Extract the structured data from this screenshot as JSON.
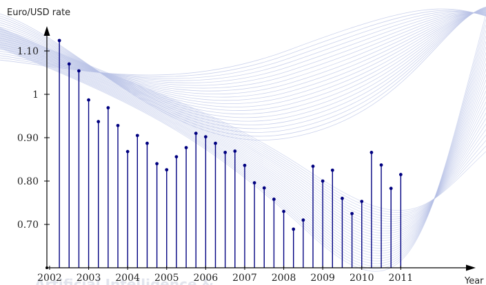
{
  "chart_data": {
    "type": "bar",
    "style": "stem",
    "ylabel": "Euro/USD rate",
    "xlabel": "Year",
    "yticks": [
      {
        "value": 0.7,
        "label": "0.70"
      },
      {
        "value": 0.8,
        "label": "0.80"
      },
      {
        "value": 0.9,
        "label": "0.90"
      },
      {
        "value": 1.0,
        "label": "1"
      },
      {
        "value": 1.1,
        "label": "1.10"
      }
    ],
    "xticks": [
      {
        "value": 2002,
        "label": "2002"
      },
      {
        "value": 2003,
        "label": "2003"
      },
      {
        "value": 2004,
        "label": "2004"
      },
      {
        "value": 2005,
        "label": "2005"
      },
      {
        "value": 2006,
        "label": "2006"
      },
      {
        "value": 2007,
        "label": "2007"
      },
      {
        "value": 2008,
        "label": "2008"
      },
      {
        "value": 2009,
        "label": "2009"
      },
      {
        "value": 2010,
        "label": "2010"
      },
      {
        "value": 2011,
        "label": "2011"
      }
    ],
    "xlim": [
      2001.93,
      2011.93
    ],
    "ylim": [
      0.6,
      1.15
    ],
    "x": [
      2002.25,
      2002.5,
      2002.75,
      2003.0,
      2003.25,
      2003.5,
      2003.75,
      2004.0,
      2004.25,
      2004.5,
      2004.75,
      2005.0,
      2005.25,
      2005.5,
      2005.75,
      2006.0,
      2006.25,
      2006.5,
      2006.75,
      2007.0,
      2007.25,
      2007.5,
      2007.75,
      2008.0,
      2008.25,
      2008.5,
      2008.75,
      2009.0,
      2009.25,
      2009.5,
      2009.75,
      2010.0,
      2010.25,
      2010.5,
      2010.75,
      2011.0
    ],
    "values": [
      1.124,
      1.07,
      1.054,
      0.987,
      0.937,
      0.969,
      0.928,
      0.868,
      0.905,
      0.887,
      0.84,
      0.826,
      0.856,
      0.877,
      0.91,
      0.902,
      0.887,
      0.866,
      0.869,
      0.836,
      0.796,
      0.784,
      0.758,
      0.73,
      0.689,
      0.71,
      0.834,
      0.8,
      0.825,
      0.76,
      0.725,
      0.753,
      0.866,
      0.837,
      0.783,
      0.815
    ],
    "colors": {
      "stem": "#000080",
      "axis": "#000000",
      "background_lines": "#b8c2e6"
    },
    "grid": false,
    "legend": "none"
  },
  "watermark": {
    "text": "Artificial Intelligence & ..."
  }
}
